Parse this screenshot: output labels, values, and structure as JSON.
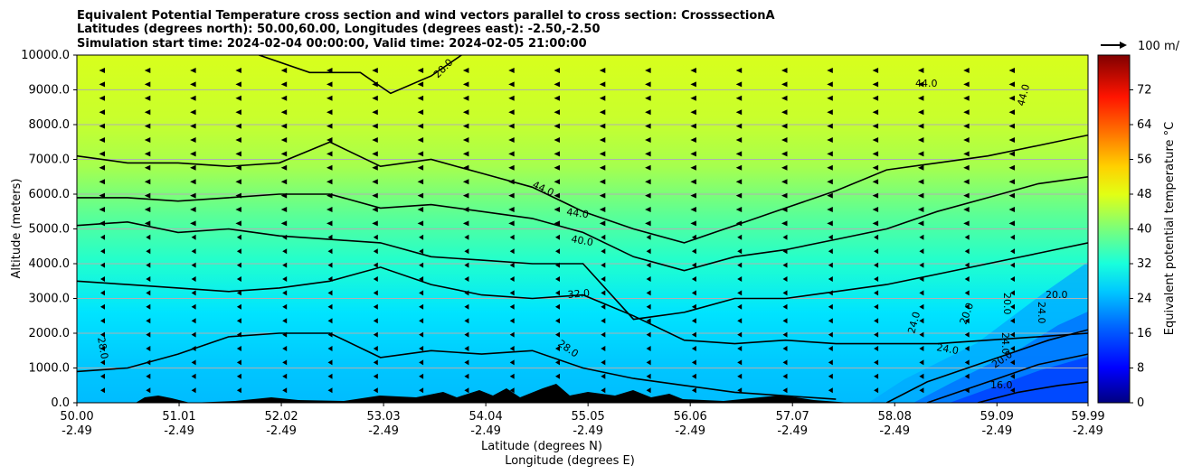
{
  "chart_data": {
    "type": "contour",
    "title_lines": [
      "Equivalent Potential Temperature cross section and wind vectors parallel to cross section: CrosssectionA",
      "Latitudes (degrees north): 50.00,60.00, Longitudes (degrees east): -2.50,-2.50",
      "Simulation start time: 2024-02-04 00:00:00, Valid time: 2024-02-05 21:00:00"
    ],
    "xlabel_1": "Latitude (degrees N)",
    "xlabel_2": "Longitude (degrees E)",
    "ylabel": "Altitude (meters)",
    "colorbar_label": "Equivalent potential temperature $^\\circ$C",
    "colorbar_label_display": "Equivalent potential temperature °C",
    "quiver_key_label": "100 m/",
    "xlim": [
      50.0,
      59.99
    ],
    "ylim": [
      0,
      10000
    ],
    "x_ticks": [
      {
        "lat": "50.00",
        "lon": "-2.49"
      },
      {
        "lat": "51.01",
        "lon": "-2.49"
      },
      {
        "lat": "52.02",
        "lon": "-2.49"
      },
      {
        "lat": "53.03",
        "lon": "-2.49"
      },
      {
        "lat": "54.04",
        "lon": "-2.49"
      },
      {
        "lat": "55.05",
        "lon": "-2.49"
      },
      {
        "lat": "56.06",
        "lon": "-2.49"
      },
      {
        "lat": "57.07",
        "lon": "-2.49"
      },
      {
        "lat": "58.08",
        "lon": "-2.49"
      },
      {
        "lat": "59.09",
        "lon": "-2.49"
      },
      {
        "lat": "59.99",
        "lon": "-2.49"
      }
    ],
    "y_ticks": [
      "0.0",
      "1000.0",
      "2000.0",
      "3000.0",
      "4000.0",
      "5000.0",
      "6000.0",
      "7000.0",
      "8000.0",
      "9000.0",
      "10000.0"
    ],
    "colorbar_ticks": [
      "0",
      "8",
      "16",
      "24",
      "32",
      "40",
      "48",
      "56",
      "64",
      "72"
    ],
    "colorbar_range": [
      0,
      80
    ],
    "grid": "horizontal",
    "contours": [
      {
        "level": 28,
        "label": "28.0",
        "points": [
          [
            50.0,
            900
          ],
          [
            50.5,
            1000
          ],
          [
            51.0,
            1400
          ],
          [
            51.5,
            1900
          ],
          [
            52.0,
            2000
          ],
          [
            52.5,
            2000
          ],
          [
            53.0,
            1300
          ],
          [
            53.5,
            1500
          ],
          [
            54.0,
            1400
          ],
          [
            54.5,
            1500
          ],
          [
            55.0,
            1000
          ],
          [
            55.5,
            700
          ],
          [
            56.0,
            500
          ],
          [
            56.5,
            300
          ],
          [
            57.0,
            200
          ],
          [
            57.5,
            100
          ]
        ]
      },
      {
        "level": 32,
        "label": "32.0",
        "points": [
          [
            50.0,
            3500
          ],
          [
            50.5,
            3400
          ],
          [
            51.0,
            3300
          ],
          [
            51.5,
            3200
          ],
          [
            52.0,
            3300
          ],
          [
            52.5,
            3500
          ],
          [
            53.0,
            3900
          ],
          [
            53.5,
            3400
          ],
          [
            54.0,
            3100
          ],
          [
            54.5,
            3000
          ],
          [
            55.0,
            3100
          ],
          [
            55.5,
            2500
          ],
          [
            56.0,
            1800
          ],
          [
            56.5,
            1700
          ],
          [
            57.0,
            1800
          ],
          [
            57.5,
            1700
          ],
          [
            58.0,
            1700
          ],
          [
            58.5,
            1700
          ],
          [
            59.0,
            1800
          ],
          [
            59.5,
            1900
          ],
          [
            59.99,
            2000
          ]
        ]
      },
      {
        "level": 36,
        "label": "",
        "points": [
          [
            50.0,
            5100
          ],
          [
            50.5,
            5200
          ],
          [
            51.0,
            4900
          ],
          [
            51.5,
            5000
          ],
          [
            52.0,
            4800
          ],
          [
            52.5,
            4700
          ],
          [
            53.0,
            4600
          ],
          [
            53.5,
            4200
          ],
          [
            54.0,
            4100
          ],
          [
            54.5,
            4000
          ],
          [
            55.0,
            4000
          ],
          [
            55.5,
            2400
          ],
          [
            56.0,
            2600
          ],
          [
            56.5,
            3000
          ],
          [
            57.0,
            3000
          ],
          [
            57.5,
            3200
          ],
          [
            58.0,
            3400
          ],
          [
            58.5,
            3700
          ],
          [
            59.0,
            4000
          ],
          [
            59.5,
            4300
          ],
          [
            59.99,
            4600
          ]
        ]
      },
      {
        "level": 40,
        "label": "40.0",
        "points": [
          [
            50.0,
            5900
          ],
          [
            50.5,
            5900
          ],
          [
            51.0,
            5800
          ],
          [
            51.5,
            5900
          ],
          [
            52.0,
            6000
          ],
          [
            52.5,
            6000
          ],
          [
            53.0,
            5600
          ],
          [
            53.5,
            5700
          ],
          [
            54.0,
            5500
          ],
          [
            54.5,
            5300
          ],
          [
            55.0,
            4900
          ],
          [
            55.5,
            4200
          ],
          [
            56.0,
            3800
          ],
          [
            56.5,
            4200
          ],
          [
            57.0,
            4400
          ],
          [
            57.5,
            4700
          ],
          [
            58.0,
            5000
          ],
          [
            58.5,
            5500
          ],
          [
            59.0,
            5900
          ],
          [
            59.5,
            6300
          ],
          [
            59.99,
            6500
          ]
        ]
      },
      {
        "level": 44,
        "label": "44.0",
        "points": [
          [
            50.0,
            7100
          ],
          [
            50.5,
            6900
          ],
          [
            51.0,
            6900
          ],
          [
            51.5,
            6800
          ],
          [
            52.0,
            6900
          ],
          [
            52.5,
            7500
          ],
          [
            53.0,
            6800
          ],
          [
            53.5,
            7000
          ],
          [
            54.0,
            6600
          ],
          [
            54.5,
            6200
          ],
          [
            55.0,
            5500
          ],
          [
            55.5,
            5000
          ],
          [
            56.0,
            4600
          ],
          [
            56.5,
            5100
          ],
          [
            57.0,
            5600
          ],
          [
            57.5,
            6100
          ],
          [
            58.0,
            6700
          ],
          [
            58.5,
            6900
          ],
          [
            59.0,
            7100
          ],
          [
            59.5,
            7400
          ],
          [
            59.99,
            7700
          ]
        ]
      },
      {
        "level": 48,
        "label": "48.0",
        "points": [
          [
            51.8,
            10000
          ],
          [
            52.3,
            9500
          ],
          [
            52.8,
            9500
          ],
          [
            53.1,
            8900
          ],
          [
            53.5,
            9400
          ],
          [
            53.8,
            10000
          ]
        ]
      }
    ],
    "inline_labels": [
      "44.0",
      "44.0",
      "40.0",
      "32.0",
      "28.0",
      "24.0",
      "24.0",
      "20.0",
      "20.0",
      "20.0",
      "24.0",
      "16.0",
      "24.0",
      "24.0",
      "44.0",
      "44.0",
      "28.0"
    ]
  }
}
